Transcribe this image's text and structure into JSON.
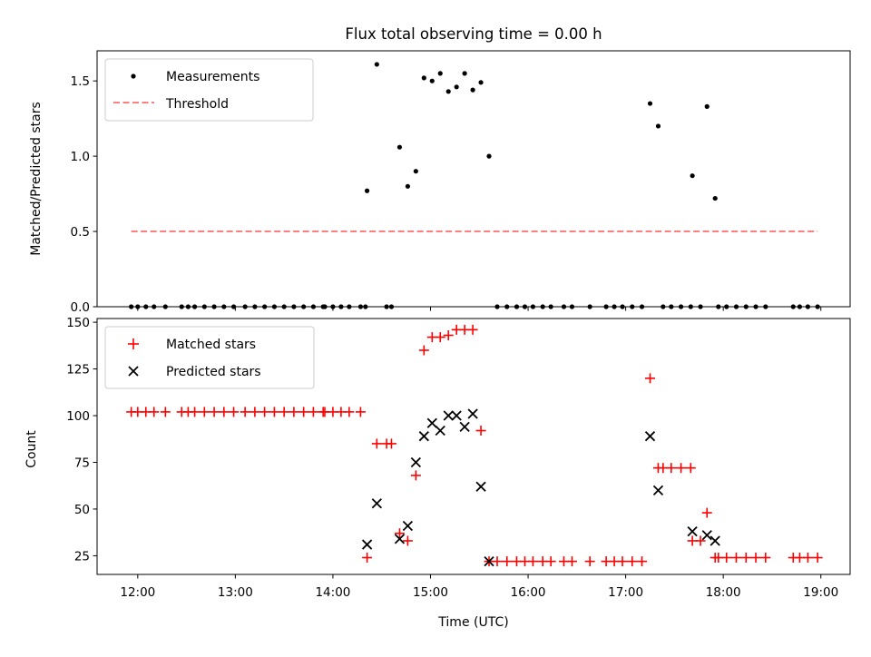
{
  "chart_data": [
    {
      "type": "scatter",
      "title": "Flux total observing time = 0.00 h",
      "xlabel": "",
      "ylabel": "Matched/Predicted stars",
      "ylim": [
        0,
        1.7
      ],
      "xlim": [
        "11:35",
        "19:18"
      ],
      "yticks": [
        "0.0",
        "0.5",
        "1.0",
        "1.5"
      ],
      "legend_position": "top-left",
      "grid": false,
      "series": [
        {
          "name": "Measurements",
          "marker": "dot",
          "color": "#000000",
          "points": [
            [
              "11:56",
              0
            ],
            [
              "12:00",
              0
            ],
            [
              "12:05",
              0
            ],
            [
              "12:10",
              0
            ],
            [
              "12:17",
              0
            ],
            [
              "12:27",
              0
            ],
            [
              "12:31",
              0
            ],
            [
              "12:35",
              0
            ],
            [
              "12:41",
              0
            ],
            [
              "12:47",
              0
            ],
            [
              "12:53",
              0
            ],
            [
              "12:59",
              0
            ],
            [
              "13:06",
              0
            ],
            [
              "13:12",
              0
            ],
            [
              "13:18",
              0
            ],
            [
              "13:24",
              0
            ],
            [
              "13:30",
              0
            ],
            [
              "13:36",
              0
            ],
            [
              "13:42",
              0
            ],
            [
              "13:48",
              0
            ],
            [
              "13:54",
              0
            ],
            [
              "13:55",
              0
            ],
            [
              "14:00",
              0
            ],
            [
              "14:05",
              0
            ],
            [
              "14:10",
              0
            ],
            [
              "14:17",
              0
            ],
            [
              "14:20",
              0
            ],
            [
              "14:33",
              0
            ],
            [
              "14:36",
              0
            ],
            [
              "14:21",
              0.77
            ],
            [
              "14:27",
              1.61
            ],
            [
              "14:41",
              1.06
            ],
            [
              "14:46",
              0.8
            ],
            [
              "14:51",
              0.9
            ],
            [
              "14:56",
              1.52
            ],
            [
              "15:01",
              1.5
            ],
            [
              "15:06",
              1.55
            ],
            [
              "15:11",
              1.43
            ],
            [
              "15:16",
              1.46
            ],
            [
              "15:21",
              1.55
            ],
            [
              "15:26",
              1.44
            ],
            [
              "15:31",
              1.49
            ],
            [
              "15:36",
              1.0
            ],
            [
              "15:41",
              0
            ],
            [
              "15:47",
              0
            ],
            [
              "15:53",
              0
            ],
            [
              "15:58",
              0
            ],
            [
              "16:03",
              0
            ],
            [
              "16:09",
              0
            ],
            [
              "16:14",
              0
            ],
            [
              "16:22",
              0
            ],
            [
              "16:27",
              0
            ],
            [
              "16:38",
              0
            ],
            [
              "16:48",
              0
            ],
            [
              "16:53",
              0
            ],
            [
              "16:58",
              0
            ],
            [
              "17:04",
              0
            ],
            [
              "17:10",
              0
            ],
            [
              "17:15",
              1.35
            ],
            [
              "17:20",
              1.2
            ],
            [
              "17:23",
              0
            ],
            [
              "17:28",
              0
            ],
            [
              "17:34",
              0
            ],
            [
              "17:40",
              0
            ],
            [
              "17:41",
              0.87
            ],
            [
              "17:50",
              1.33
            ],
            [
              "17:55",
              0.72
            ],
            [
              "17:46",
              0
            ],
            [
              "17:57",
              0
            ],
            [
              "18:02",
              0
            ],
            [
              "18:08",
              0
            ],
            [
              "18:14",
              0
            ],
            [
              "18:20",
              0
            ],
            [
              "18:26",
              0
            ],
            [
              "18:43",
              0
            ],
            [
              "18:47",
              0
            ],
            [
              "18:52",
              0
            ],
            [
              "18:58",
              0
            ]
          ]
        },
        {
          "name": "Threshold",
          "type": "line",
          "style": "dashed",
          "color": "#ff7f7f",
          "points": [
            [
              "11:56",
              0.5
            ],
            [
              "18:58",
              0.5
            ]
          ]
        }
      ]
    },
    {
      "type": "scatter",
      "title": "",
      "xlabel": "Time (UTC)",
      "ylabel": "Count",
      "ylim": [
        15,
        152
      ],
      "xlim": [
        "11:35",
        "19:18"
      ],
      "yticks": [
        "25",
        "50",
        "75",
        "100",
        "125",
        "150"
      ],
      "xticks": [
        "12:00",
        "13:00",
        "14:00",
        "15:00",
        "16:00",
        "17:00",
        "18:00",
        "19:00"
      ],
      "legend_position": "top-left",
      "grid": false,
      "series": [
        {
          "name": "Matched stars",
          "marker": "plus",
          "color": "#ff0000",
          "points": [
            [
              "11:56",
              102
            ],
            [
              "12:00",
              102
            ],
            [
              "12:05",
              102
            ],
            [
              "12:10",
              102
            ],
            [
              "12:17",
              102
            ],
            [
              "12:27",
              102
            ],
            [
              "12:31",
              102
            ],
            [
              "12:35",
              102
            ],
            [
              "12:41",
              102
            ],
            [
              "12:47",
              102
            ],
            [
              "12:53",
              102
            ],
            [
              "12:59",
              102
            ],
            [
              "13:06",
              102
            ],
            [
              "13:12",
              102
            ],
            [
              "13:18",
              102
            ],
            [
              "13:24",
              102
            ],
            [
              "13:30",
              102
            ],
            [
              "13:36",
              102
            ],
            [
              "13:42",
              102
            ],
            [
              "13:48",
              102
            ],
            [
              "13:54",
              102
            ],
            [
              "13:55",
              102
            ],
            [
              "14:00",
              102
            ],
            [
              "14:05",
              102
            ],
            [
              "14:10",
              102
            ],
            [
              "14:17",
              102
            ],
            [
              "14:21",
              24
            ],
            [
              "14:27",
              85
            ],
            [
              "14:33",
              85
            ],
            [
              "14:36",
              85
            ],
            [
              "14:41",
              37
            ],
            [
              "14:46",
              33
            ],
            [
              "14:51",
              68
            ],
            [
              "14:56",
              135
            ],
            [
              "15:01",
              142
            ],
            [
              "15:06",
              142
            ],
            [
              "15:11",
              143
            ],
            [
              "15:16",
              146
            ],
            [
              "15:21",
              146
            ],
            [
              "15:26",
              146
            ],
            [
              "15:31",
              92
            ],
            [
              "15:36",
              22
            ],
            [
              "15:41",
              22
            ],
            [
              "15:47",
              22
            ],
            [
              "15:53",
              22
            ],
            [
              "15:58",
              22
            ],
            [
              "16:03",
              22
            ],
            [
              "16:09",
              22
            ],
            [
              "16:14",
              22
            ],
            [
              "16:22",
              22
            ],
            [
              "16:27",
              22
            ],
            [
              "16:38",
              22
            ],
            [
              "16:48",
              22
            ],
            [
              "16:53",
              22
            ],
            [
              "16:58",
              22
            ],
            [
              "17:04",
              22
            ],
            [
              "17:10",
              22
            ],
            [
              "17:15",
              120
            ],
            [
              "17:20",
              72
            ],
            [
              "17:23",
              72
            ],
            [
              "17:28",
              72
            ],
            [
              "17:34",
              72
            ],
            [
              "17:40",
              72
            ],
            [
              "17:41",
              33
            ],
            [
              "17:46",
              33
            ],
            [
              "17:50",
              48
            ],
            [
              "17:55",
              24
            ],
            [
              "17:57",
              24
            ],
            [
              "18:02",
              24
            ],
            [
              "18:08",
              24
            ],
            [
              "18:14",
              24
            ],
            [
              "18:20",
              24
            ],
            [
              "18:26",
              24
            ],
            [
              "18:43",
              24
            ],
            [
              "18:47",
              24
            ],
            [
              "18:52",
              24
            ],
            [
              "18:58",
              24
            ]
          ]
        },
        {
          "name": "Predicted stars",
          "marker": "x",
          "color": "#000000",
          "points": [
            [
              "14:21",
              31
            ],
            [
              "14:27",
              53
            ],
            [
              "14:41",
              34
            ],
            [
              "14:46",
              41
            ],
            [
              "14:51",
              75
            ],
            [
              "14:56",
              89
            ],
            [
              "15:01",
              96
            ],
            [
              "15:06",
              92
            ],
            [
              "15:11",
              100
            ],
            [
              "15:16",
              100
            ],
            [
              "15:21",
              94
            ],
            [
              "15:26",
              101
            ],
            [
              "15:31",
              62
            ],
            [
              "15:36",
              22
            ],
            [
              "17:15",
              89
            ],
            [
              "17:20",
              60
            ],
            [
              "17:41",
              38
            ],
            [
              "17:50",
              36
            ],
            [
              "17:55",
              33
            ]
          ]
        }
      ]
    }
  ]
}
